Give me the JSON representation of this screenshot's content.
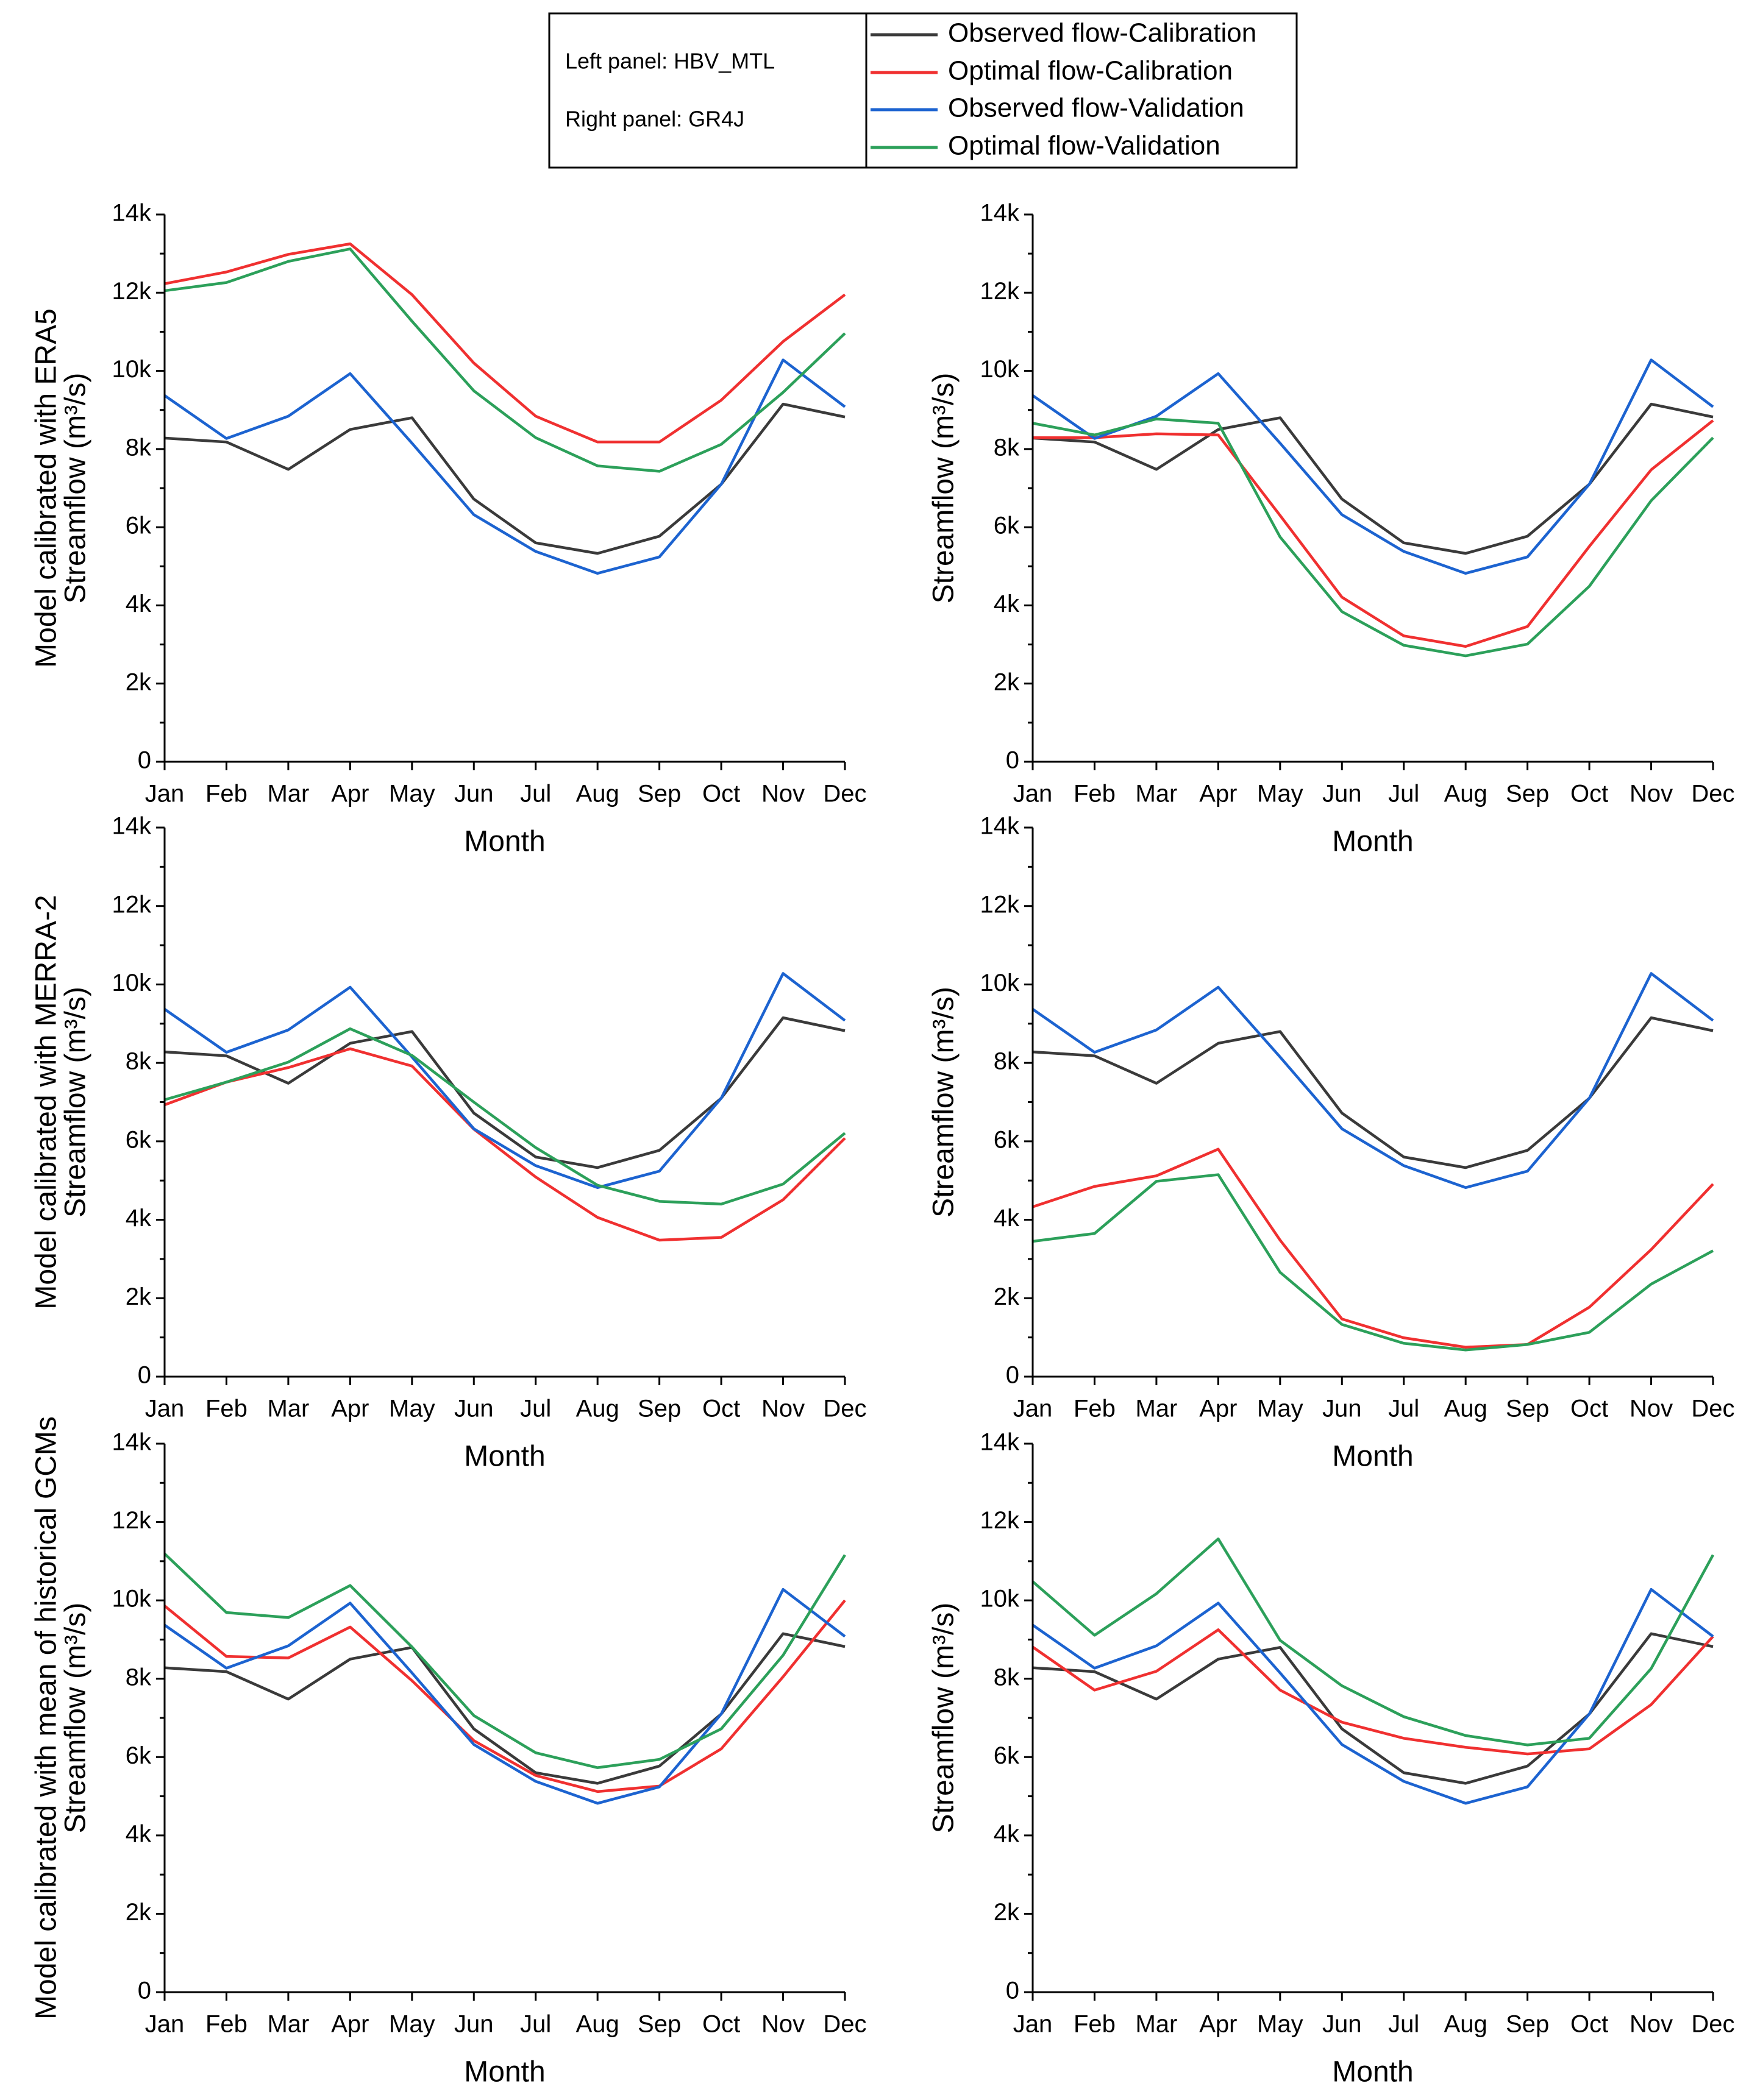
{
  "legend": {
    "notes": [
      "Left panel: HBV_MTL",
      "Right panel: GR4J"
    ]
  },
  "row_labels": [
    "Model calibrated with ERA5",
    "Model calibrated with MERRA-2",
    "Model calibrated with mean of historical GCMs"
  ],
  "chart_data": [
    {
      "type": "line",
      "xlabel": "Month",
      "ylabel": "Streamflow (m³/s)",
      "categories": [
        "Jan",
        "Feb",
        "Mar",
        "Apr",
        "May",
        "Jun",
        "Jul",
        "Aug",
        "Sep",
        "Oct",
        "Nov",
        "Dec"
      ],
      "ylim": [
        0,
        14000
      ],
      "yticks": [
        0,
        {
          "value": 2000,
          "label": "2k"
        },
        {
          "value": 4000,
          "label": "4k"
        },
        {
          "value": 6000,
          "label": "6k"
        },
        {
          "value": 8000,
          "label": "8k"
        },
        {
          "value": 10000,
          "label": "10k"
        },
        {
          "value": 12000,
          "label": "12k"
        },
        {
          "value": 14000,
          "label": "14k"
        }
      ],
      "series": [
        {
          "name": "Observed flow-Calibration",
          "color": "#3a3a3a",
          "values": [
            8280,
            8180,
            7480,
            8500,
            8800,
            6720,
            5600,
            5330,
            5770,
            7100,
            9150,
            8820
          ]
        },
        {
          "name": "Optimal flow-Calibration",
          "color": "#f03030",
          "values": [
            12230,
            12530,
            12980,
            13250,
            11950,
            10200,
            8840,
            8180,
            8180,
            9250,
            10750,
            11950
          ]
        },
        {
          "name": "Observed flow-Validation",
          "color": "#1c63d0",
          "values": [
            9370,
            8270,
            8840,
            9930,
            8150,
            6320,
            5380,
            4820,
            5240,
            7100,
            10280,
            9080
          ]
        },
        {
          "name": "Optimal flow-Validation",
          "color": "#2ca05a",
          "values": [
            12050,
            12260,
            12800,
            13120,
            11270,
            9490,
            8290,
            7570,
            7430,
            8120,
            9450,
            10960
          ]
        }
      ]
    },
    {
      "type": "line",
      "xlabel": "Month",
      "ylabel": "Streamflow (m³/s)",
      "categories": [
        "Jan",
        "Feb",
        "Mar",
        "Apr",
        "May",
        "Jun",
        "Jul",
        "Aug",
        "Sep",
        "Oct",
        "Nov",
        "Dec"
      ],
      "ylim": [
        0,
        14000
      ],
      "yticks": [
        0,
        {
          "value": 2000,
          "label": "2k"
        },
        {
          "value": 4000,
          "label": "4k"
        },
        {
          "value": 6000,
          "label": "6k"
        },
        {
          "value": 8000,
          "label": "8k"
        },
        {
          "value": 10000,
          "label": "10k"
        },
        {
          "value": 12000,
          "label": "12k"
        },
        {
          "value": 14000,
          "label": "14k"
        }
      ],
      "series": [
        {
          "name": "Observed flow-Calibration",
          "color": "#3a3a3a",
          "values": [
            8280,
            8180,
            7480,
            8500,
            8800,
            6720,
            5600,
            5330,
            5770,
            7100,
            9150,
            8820
          ]
        },
        {
          "name": "Optimal flow-Calibration",
          "color": "#f03030",
          "values": [
            8290,
            8290,
            8390,
            8360,
            6300,
            4210,
            3220,
            2950,
            3460,
            5510,
            7470,
            8730
          ]
        },
        {
          "name": "Observed flow-Validation",
          "color": "#1c63d0",
          "values": [
            9370,
            8270,
            8840,
            9930,
            8150,
            6320,
            5380,
            4820,
            5240,
            7100,
            10280,
            9080
          ]
        },
        {
          "name": "Optimal flow-Validation",
          "color": "#2ca05a",
          "values": [
            8660,
            8360,
            8770,
            8660,
            5750,
            3840,
            2980,
            2710,
            3010,
            4490,
            6680,
            8290
          ]
        }
      ]
    },
    {
      "type": "line",
      "xlabel": "Month",
      "ylabel": "Streamflow (m³/s)",
      "categories": [
        "Jan",
        "Feb",
        "Mar",
        "Apr",
        "May",
        "Jun",
        "Jul",
        "Aug",
        "Sep",
        "Oct",
        "Nov",
        "Dec"
      ],
      "ylim": [
        0,
        14000
      ],
      "yticks": [
        0,
        {
          "value": 2000,
          "label": "2k"
        },
        {
          "value": 4000,
          "label": "4k"
        },
        {
          "value": 6000,
          "label": "6k"
        },
        {
          "value": 8000,
          "label": "8k"
        },
        {
          "value": 10000,
          "label": "10k"
        },
        {
          "value": 12000,
          "label": "12k"
        },
        {
          "value": 14000,
          "label": "14k"
        }
      ],
      "series": [
        {
          "name": "Observed flow-Calibration",
          "color": "#3a3a3a",
          "values": [
            8280,
            8180,
            7480,
            8500,
            8800,
            6720,
            5600,
            5330,
            5770,
            7100,
            9150,
            8820
          ]
        },
        {
          "name": "Optimal flow-Calibration",
          "color": "#f03030",
          "values": [
            6930,
            7510,
            7880,
            8360,
            7920,
            6310,
            5090,
            4060,
            3480,
            3550,
            4510,
            6080
          ]
        },
        {
          "name": "Observed flow-Validation",
          "color": "#1c63d0",
          "values": [
            9370,
            8270,
            8840,
            9930,
            8150,
            6320,
            5380,
            4820,
            5240,
            7100,
            10280,
            9080
          ]
        },
        {
          "name": "Optimal flow-Validation",
          "color": "#2ca05a",
          "values": [
            7060,
            7510,
            8020,
            8870,
            8190,
            7000,
            5840,
            4880,
            4470,
            4400,
            4910,
            6210
          ]
        }
      ]
    },
    {
      "type": "line",
      "xlabel": "Month",
      "ylabel": "Streamflow (m³/s)",
      "categories": [
        "Jan",
        "Feb",
        "Mar",
        "Apr",
        "May",
        "Jun",
        "Jul",
        "Aug",
        "Sep",
        "Oct",
        "Nov",
        "Dec"
      ],
      "ylim": [
        0,
        14000
      ],
      "yticks": [
        0,
        {
          "value": 2000,
          "label": "2k"
        },
        {
          "value": 4000,
          "label": "4k"
        },
        {
          "value": 6000,
          "label": "6k"
        },
        {
          "value": 8000,
          "label": "8k"
        },
        {
          "value": 10000,
          "label": "10k"
        },
        {
          "value": 12000,
          "label": "12k"
        },
        {
          "value": 14000,
          "label": "14k"
        }
      ],
      "series": [
        {
          "name": "Observed flow-Calibration",
          "color": "#3a3a3a",
          "values": [
            8280,
            8180,
            7480,
            8500,
            8800,
            6720,
            5600,
            5330,
            5770,
            7100,
            9150,
            8820
          ]
        },
        {
          "name": "Optimal flow-Calibration",
          "color": "#f03030",
          "values": [
            4330,
            4850,
            5120,
            5800,
            3480,
            1470,
            990,
            750,
            820,
            1770,
            3240,
            4910
          ]
        },
        {
          "name": "Observed flow-Validation",
          "color": "#1c63d0",
          "values": [
            9370,
            8270,
            8840,
            9930,
            8150,
            6320,
            5380,
            4820,
            5240,
            7100,
            10280,
            9080
          ]
        },
        {
          "name": "Optimal flow-Validation",
          "color": "#2ca05a",
          "values": [
            3450,
            3650,
            4980,
            5150,
            2660,
            1330,
            850,
            680,
            820,
            1130,
            2360,
            3210
          ]
        }
      ]
    },
    {
      "type": "line",
      "xlabel": "Month",
      "ylabel": "Streamflow (m³/s)",
      "categories": [
        "Jan",
        "Feb",
        "Mar",
        "Apr",
        "May",
        "Jun",
        "Jul",
        "Aug",
        "Sep",
        "Oct",
        "Nov",
        "Dec"
      ],
      "ylim": [
        0,
        14000
      ],
      "yticks": [
        0,
        {
          "value": 2000,
          "label": "2k"
        },
        {
          "value": 4000,
          "label": "4k"
        },
        {
          "value": 6000,
          "label": "6k"
        },
        {
          "value": 8000,
          "label": "8k"
        },
        {
          "value": 10000,
          "label": "10k"
        },
        {
          "value": 12000,
          "label": "12k"
        },
        {
          "value": 14000,
          "label": "14k"
        }
      ],
      "series": [
        {
          "name": "Observed flow-Calibration",
          "color": "#3a3a3a",
          "values": [
            8280,
            8180,
            7480,
            8500,
            8800,
            6720,
            5600,
            5330,
            5770,
            7100,
            9150,
            8820
          ]
        },
        {
          "name": "Optimal flow-Calibration",
          "color": "#f03030",
          "values": [
            9860,
            8570,
            8530,
            9320,
            7950,
            6420,
            5530,
            5120,
            5260,
            6210,
            8050,
            10000
          ]
        },
        {
          "name": "Observed flow-Validation",
          "color": "#1c63d0",
          "values": [
            9370,
            8270,
            8840,
            9930,
            8150,
            6320,
            5380,
            4820,
            5240,
            7100,
            10280,
            9080
          ]
        },
        {
          "name": "Optimal flow-Validation",
          "color": "#2ca05a",
          "values": [
            11190,
            9690,
            9560,
            10380,
            8810,
            7060,
            6110,
            5730,
            5940,
            6720,
            8600,
            11160
          ]
        }
      ]
    },
    {
      "type": "line",
      "xlabel": "Month",
      "ylabel": "Streamflow (m³/s)",
      "categories": [
        "Jan",
        "Feb",
        "Mar",
        "Apr",
        "May",
        "Jun",
        "Jul",
        "Aug",
        "Sep",
        "Oct",
        "Nov",
        "Dec"
      ],
      "ylim": [
        0,
        14000
      ],
      "yticks": [
        0,
        {
          "value": 2000,
          "label": "2k"
        },
        {
          "value": 4000,
          "label": "4k"
        },
        {
          "value": 6000,
          "label": "6k"
        },
        {
          "value": 8000,
          "label": "8k"
        },
        {
          "value": 10000,
          "label": "10k"
        },
        {
          "value": 12000,
          "label": "12k"
        },
        {
          "value": 14000,
          "label": "14k"
        }
      ],
      "series": [
        {
          "name": "Observed flow-Calibration",
          "color": "#3a3a3a",
          "values": [
            8280,
            8180,
            7480,
            8500,
            8800,
            6720,
            5600,
            5330,
            5770,
            7100,
            9150,
            8820
          ]
        },
        {
          "name": "Optimal flow-Calibration",
          "color": "#f03030",
          "values": [
            8810,
            7710,
            8190,
            9250,
            7710,
            6890,
            6480,
            6250,
            6080,
            6210,
            7340,
            9080
          ]
        },
        {
          "name": "Observed flow-Validation",
          "color": "#1c63d0",
          "values": [
            9370,
            8270,
            8840,
            9930,
            8150,
            6320,
            5380,
            4820,
            5240,
            7100,
            10280,
            9080
          ]
        },
        {
          "name": "Optimal flow-Validation",
          "color": "#2ca05a",
          "values": [
            10480,
            9110,
            10170,
            11570,
            8980,
            7820,
            7030,
            6550,
            6310,
            6480,
            8260,
            11160
          ]
        }
      ]
    }
  ]
}
